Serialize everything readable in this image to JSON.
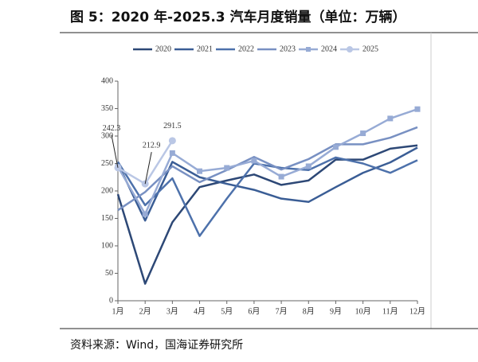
{
  "chart_data": {
    "type": "line",
    "title": "图 5：2020 年-2025.3 汽车月度销量（单位：万辆）",
    "source": "资料来源：Wind，国海证券研究所",
    "categories": [
      "1月",
      "2月",
      "3月",
      "4月",
      "5月",
      "6月",
      "7月",
      "8月",
      "9月",
      "10月",
      "11月",
      "12月"
    ],
    "series": [
      {
        "name": "2020",
        "color": "#2d4876",
        "marker": "none",
        "values": [
          194,
          31,
          143,
          207,
          219,
          230,
          211,
          219,
          257,
          257,
          277,
          283
        ]
      },
      {
        "name": "2021",
        "color": "#3a5d95",
        "marker": "none",
        "values": [
          250,
          146,
          253,
          225,
          213,
          202,
          186,
          180,
          207,
          233,
          252,
          279
        ]
      },
      {
        "name": "2022",
        "color": "#4d71ab",
        "marker": "none",
        "values": [
          253,
          174,
          223,
          118,
          186,
          250,
          242,
          238,
          261,
          250,
          233,
          256
        ]
      },
      {
        "name": "2023",
        "color": "#7890c2",
        "marker": "none",
        "values": [
          165,
          198,
          245,
          216,
          238,
          262,
          239,
          258,
          285,
          285,
          297,
          316
        ]
      },
      {
        "name": "2024",
        "color": "#97abd5",
        "marker": "square",
        "values": [
          244,
          158,
          269,
          236,
          242,
          255,
          226,
          245,
          280,
          305,
          332,
          349
        ]
      },
      {
        "name": "2025",
        "color": "#bac7e5",
        "marker": "circle",
        "data_labels": true,
        "values": [
          242.3,
          212.9,
          291.5,
          null,
          null,
          null,
          null,
          null,
          null,
          null,
          null,
          null
        ]
      }
    ],
    "ylim": [
      0,
      400
    ],
    "yticks": [
      0,
      50,
      100,
      150,
      200,
      250,
      300,
      350,
      400
    ],
    "legend": "top"
  }
}
